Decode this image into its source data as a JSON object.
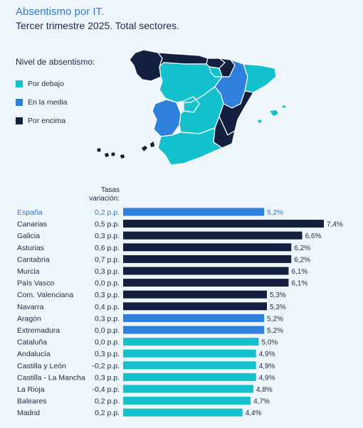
{
  "title": "Absentismo por IT.",
  "subtitle": "Tercer trimestre 2025. Total sectores.",
  "legend": {
    "title": "Nivel de absentismo:",
    "items": [
      {
        "label": "Por debajo",
        "color": "#13c1cc"
      },
      {
        "label": "En la media",
        "color": "#2f7fdc"
      },
      {
        "label": "Por encima",
        "color": "#13203f"
      }
    ]
  },
  "column_header": {
    "line1": "Tasas",
    "line2": "variación:"
  },
  "colors": {
    "below": "#13c1cc",
    "average": "#2f7fdc",
    "above": "#13203f",
    "highlight_text": "#2e7ad1"
  },
  "chart_data": {
    "type": "bar",
    "orientation": "horizontal",
    "title": "Absentismo por IT.",
    "subtitle": "Tercer trimestre 2025. Total sectores.",
    "xlim": [
      0,
      7.4
    ],
    "grid": false,
    "legend_placement": "top-left",
    "series": [
      {
        "name": "",
        "categories": [
          "España",
          "Canarias",
          "Galicia",
          "Asturias",
          "Cantabria",
          "Murcia",
          "País Vasco",
          "Com. Valenciana",
          "Navarra",
          "Aragón",
          "Extremadura",
          "Cataluña",
          "Andalucía",
          "Castilla y León",
          "Castilla - La Mancha",
          "La Rioja",
          "Baleares",
          "Madrid"
        ]
      }
    ],
    "rows": [
      {
        "name": "España",
        "variation": "0,2 p.p.",
        "value": 5.2,
        "label": "5,2%",
        "level": "average",
        "highlight": true
      },
      {
        "name": "Canarias",
        "variation": "0,5 p.p.",
        "value": 7.4,
        "label": "7,4%",
        "level": "above"
      },
      {
        "name": "Galicia",
        "variation": "0,3 p.p.",
        "value": 6.6,
        "label": "6,6%",
        "level": "above"
      },
      {
        "name": "Asturias",
        "variation": "0,6 p.p.",
        "value": 6.2,
        "label": "6,2%",
        "level": "above"
      },
      {
        "name": "Cantabria",
        "variation": "0,7 p.p.",
        "value": 6.2,
        "label": "6,2%",
        "level": "above"
      },
      {
        "name": "Murcia",
        "variation": "0,3 p.p.",
        "value": 6.1,
        "label": "6,1%",
        "level": "above"
      },
      {
        "name": "País Vasco",
        "variation": "0,0 p.p.",
        "value": 6.1,
        "label": "6,1%",
        "level": "above"
      },
      {
        "name": "Com. Valenciana",
        "variation": "0,3 p.p.",
        "value": 5.3,
        "label": "5,3%",
        "level": "above"
      },
      {
        "name": "Navarra",
        "variation": "0,4 p.p.",
        "value": 5.3,
        "label": "5,3%",
        "level": "above"
      },
      {
        "name": "Aragón",
        "variation": "0,3 p.p.",
        "value": 5.2,
        "label": "5,2%",
        "level": "average"
      },
      {
        "name": "Extremadura",
        "variation": "0,0 p.p.",
        "value": 5.2,
        "label": "5,2%",
        "level": "average"
      },
      {
        "name": "Cataluña",
        "variation": "0,0 p.p.",
        "value": 5.0,
        "label": "5,0%",
        "level": "below"
      },
      {
        "name": "Andalucía",
        "variation": "0,3 p.p.",
        "value": 4.9,
        "label": "4,9%",
        "level": "below"
      },
      {
        "name": "Castilla y León",
        "variation": "-0,2 p.p.",
        "value": 4.9,
        "label": "4,9%",
        "level": "below"
      },
      {
        "name": "Castilla - La Mancha",
        "variation": "0,3 p.p.",
        "value": 4.9,
        "label": "4,9%",
        "level": "below"
      },
      {
        "name": "La Rioja",
        "variation": "-0,4 p.p.",
        "value": 4.8,
        "label": "4,8%",
        "level": "below"
      },
      {
        "name": "Baleares",
        "variation": "0,2 p.p.",
        "value": 4.7,
        "label": "4,7%",
        "level": "below"
      },
      {
        "name": "Madrid",
        "variation": "0,2 p.p.",
        "value": 4.4,
        "label": "4,4%",
        "level": "below"
      }
    ]
  }
}
